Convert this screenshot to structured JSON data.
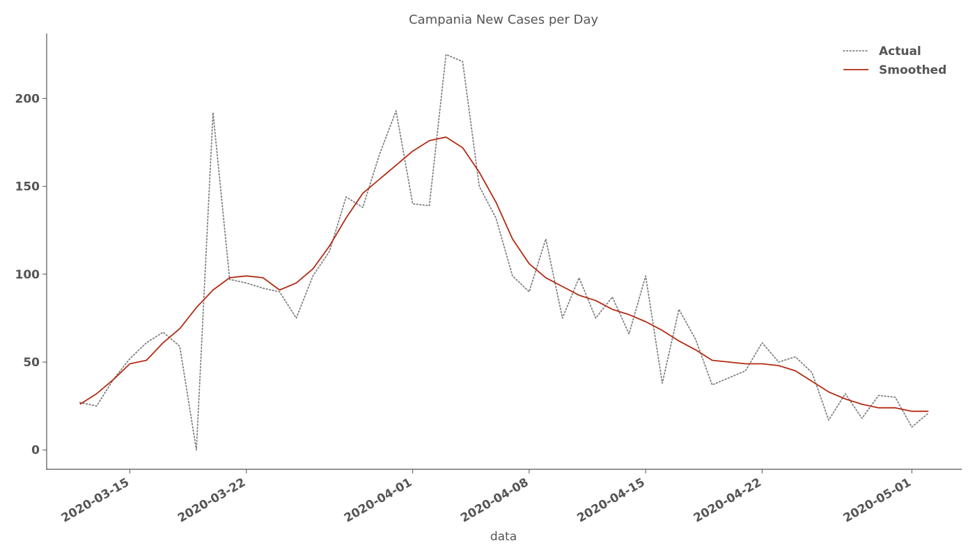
{
  "chart_data": {
    "type": "line",
    "title": "Campania New Cases per Day",
    "xlabel": "data",
    "ylabel": "",
    "x_start": "2020-03-12",
    "xlim": [
      "2020-03-10",
      "2020-05-04"
    ],
    "ylim": [
      -11,
      237
    ],
    "yticks": [
      0,
      50,
      100,
      150,
      200
    ],
    "xticks": [
      "2020-03-15",
      "2020-03-22",
      "2020-04-01",
      "2020-04-08",
      "2020-04-15",
      "2020-04-22",
      "2020-05-01"
    ],
    "grid": false,
    "legend": "top-right",
    "series": [
      {
        "name": "Actual",
        "style": "dotted",
        "color": "#808080",
        "values": [
          27,
          25,
          40,
          52,
          61,
          67,
          59,
          0,
          192,
          97,
          95,
          92,
          90,
          75,
          99,
          113,
          144,
          138,
          168,
          193,
          140,
          139,
          225,
          221,
          150,
          132,
          99,
          90,
          120,
          75,
          98,
          75,
          87,
          66,
          99,
          38,
          80,
          63,
          37,
          41,
          45,
          61,
          50,
          53,
          44,
          17,
          32,
          18,
          31,
          30,
          13,
          21
        ]
      },
      {
        "name": "Smoothed",
        "style": "solid",
        "color": "#b22a12",
        "values": [
          26,
          32,
          40,
          49,
          51,
          61,
          69,
          81,
          91,
          98,
          99,
          98,
          91,
          95,
          103,
          116,
          132,
          146,
          154,
          162,
          170,
          176,
          178,
          172,
          158,
          141,
          120,
          106,
          98,
          93,
          88,
          85,
          80,
          77,
          73,
          68,
          62,
          57,
          51,
          50,
          49,
          49,
          48,
          45,
          39,
          33,
          29,
          26,
          24,
          24,
          22,
          22
        ]
      }
    ]
  }
}
